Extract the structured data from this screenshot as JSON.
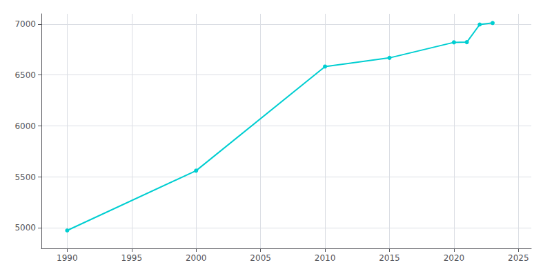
{
  "chart_data": {
    "type": "line",
    "x": [
      1990,
      2000,
      2010,
      2015,
      2020,
      2021,
      2022,
      2023
    ],
    "values": [
      4976,
      5562,
      6583,
      6668,
      6820,
      6822,
      6995,
      7010
    ],
    "color": "#00CED1",
    "marker": "circle",
    "xlim": [
      1988,
      2026
    ],
    "ylim": [
      4800,
      7100
    ],
    "xticks": [
      1990,
      1995,
      2000,
      2005,
      2010,
      2015,
      2020,
      2025
    ],
    "yticks": [
      5000,
      5500,
      6000,
      6500,
      7000
    ],
    "grid": true
  }
}
